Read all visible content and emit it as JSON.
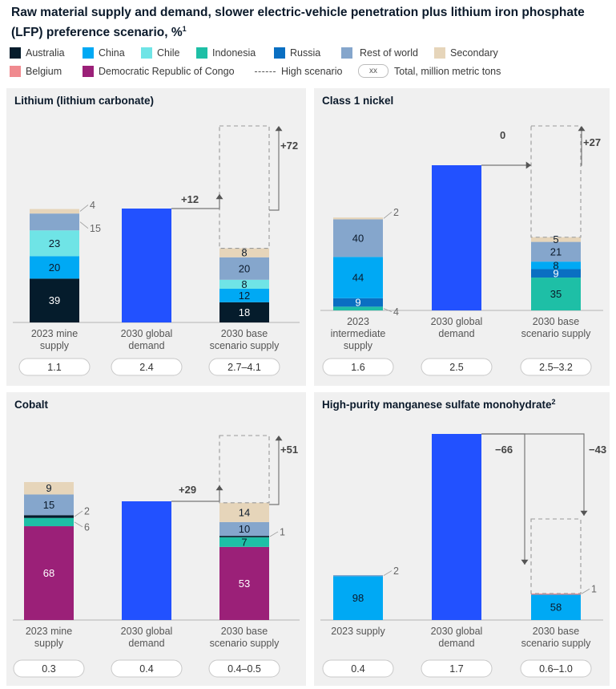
{
  "title": "Raw material supply and demand, slower electric-vehicle penetration plus lithium iron phosphate (LFP) preference scenario, %",
  "title_note": "1",
  "colors": {
    "Australia": "#051c2c",
    "China": "#00a9f4",
    "Chile": "#6fe4e6",
    "Indonesia": "#1ebfa6",
    "Russia": "#0a6fc2",
    "Rest of world": "#85a6cc",
    "Secondary": "#e6d5ba",
    "Belgium": "#f08a8f",
    "Democratic Republic of Congo": "#9b2078",
    "demand": "#2251ff"
  },
  "legend": {
    "items": [
      {
        "label": "Australia",
        "key": "Australia"
      },
      {
        "label": "China",
        "key": "China"
      },
      {
        "label": "Chile",
        "key": "Chile"
      },
      {
        "label": "Indonesia",
        "key": "Indonesia"
      },
      {
        "label": "Russia",
        "key": "Russia"
      },
      {
        "label": "Rest of world",
        "key": "Rest of world"
      },
      {
        "label": "Secondary",
        "key": "Secondary"
      },
      {
        "label": "Belgium",
        "key": "Belgium"
      },
      {
        "label": "Democratic Republic of Congo",
        "key": "Democratic Republic of Congo"
      }
    ],
    "high_scenario": "High scenario",
    "total_symbol": "xx",
    "total_label": "Total, million metric tons"
  },
  "chart_data": [
    {
      "type": "bar",
      "title": "Lithium (lithium carbonate)",
      "title_note": "",
      "categories": [
        "2023 mine supply",
        "2030 global demand",
        "2030 base scenario supply"
      ],
      "category_lines": [
        [
          "2023 mine",
          "supply"
        ],
        [
          "2030 global",
          "demand"
        ],
        [
          "2030 base",
          "scenario supply"
        ]
      ],
      "totals": [
        "1.1",
        "2.4",
        "2.7–4.1"
      ],
      "bars": [
        {
          "segments": [
            {
              "key": "Australia",
              "value": 39,
              "label": "39"
            },
            {
              "key": "China",
              "value": 20,
              "label": "20"
            },
            {
              "key": "Chile",
              "value": 23,
              "label": "23"
            },
            {
              "key": "Rest of world",
              "value": 15,
              "label": "15",
              "outside": true
            },
            {
              "key": "Secondary",
              "value": 4,
              "label": "4",
              "outside": true
            }
          ]
        },
        {
          "demand": true,
          "segments": []
        },
        {
          "segments": [
            {
              "key": "Australia",
              "value": 18,
              "label": "18"
            },
            {
              "key": "China",
              "value": 12,
              "label": "12"
            },
            {
              "key": "Chile",
              "value": 8,
              "label": "8"
            },
            {
              "key": "Rest of world",
              "value": 20,
              "label": "20"
            },
            {
              "key": "Secondary",
              "value": 8,
              "label": "8"
            }
          ],
          "high": true
        }
      ],
      "gap_label": "+12",
      "high_label": "+72"
    },
    {
      "type": "bar",
      "title": "Class 1 nickel",
      "title_note": "",
      "categories": [
        "2023 intermediate supply",
        "2030 global demand",
        "2030 base scenario supply"
      ],
      "category_lines": [
        [
          "2023",
          "intermediate",
          "supply"
        ],
        [
          "2030 global",
          "demand"
        ],
        [
          "2030 base",
          "scenario supply"
        ]
      ],
      "totals": [
        "1.6",
        "2.5",
        "2.5–3.2"
      ],
      "bars": [
        {
          "segments": [
            {
              "key": "Indonesia",
              "value": 4,
              "label": "4",
              "outside": true
            },
            {
              "key": "Russia",
              "value": 9,
              "label": "9"
            },
            {
              "key": "China",
              "value": 44,
              "label": "44"
            },
            {
              "key": "Rest of world",
              "value": 40,
              "label": "40"
            },
            {
              "key": "Secondary",
              "value": 2,
              "label": "2",
              "outside": true
            }
          ]
        },
        {
          "demand": true,
          "segments": []
        },
        {
          "segments": [
            {
              "key": "Indonesia",
              "value": 35,
              "label": "35"
            },
            {
              "key": "Russia",
              "value": 9,
              "label": "9"
            },
            {
              "key": "China",
              "value": 8,
              "label": "8"
            },
            {
              "key": "Rest of world",
              "value": 21,
              "label": "21"
            },
            {
              "key": "Secondary",
              "value": 5,
              "label": "5"
            }
          ],
          "high": true
        }
      ],
      "gap_label": "0",
      "high_label": "+27"
    },
    {
      "type": "bar",
      "title": "Cobalt",
      "title_note": "",
      "categories": [
        "2023 mine supply",
        "2030 global demand",
        "2030 base scenario supply"
      ],
      "category_lines": [
        [
          "2023 mine",
          "supply"
        ],
        [
          "2030 global",
          "demand"
        ],
        [
          "2030 base",
          "scenario supply"
        ]
      ],
      "totals": [
        "0.3",
        "0.4",
        "0.4–0.5"
      ],
      "bars": [
        {
          "segments": [
            {
              "key": "Democratic Republic of Congo",
              "value": 68,
              "label": "68"
            },
            {
              "key": "Indonesia",
              "value": 6,
              "label": "6",
              "outside": true
            },
            {
              "key": "Australia",
              "value": 2,
              "label": "2",
              "outside": true
            },
            {
              "key": "Rest of world",
              "value": 15,
              "label": "15"
            },
            {
              "key": "Secondary",
              "value": 9,
              "label": "9"
            }
          ]
        },
        {
          "demand": true,
          "segments": []
        },
        {
          "segments": [
            {
              "key": "Democratic Republic of Congo",
              "value": 53,
              "label": "53"
            },
            {
              "key": "Indonesia",
              "value": 7,
              "label": "7"
            },
            {
              "key": "Australia",
              "value": 1,
              "label": "1",
              "outside": true
            },
            {
              "key": "Rest of world",
              "value": 10,
              "label": "10"
            },
            {
              "key": "Secondary",
              "value": 14,
              "label": "14"
            }
          ],
          "high": true
        }
      ],
      "gap_label": "+29",
      "high_label": "+51"
    },
    {
      "type": "bar",
      "title": "High-purity manganese sulfate monohydrate",
      "title_note": "2",
      "categories": [
        "2023 supply",
        "2030 global demand",
        "2030 base scenario supply"
      ],
      "category_lines": [
        [
          "2023 supply"
        ],
        [
          "2030 global",
          "demand"
        ],
        [
          "2030 base",
          "scenario supply"
        ]
      ],
      "totals": [
        "0.4",
        "1.7",
        "0.6–1.0"
      ],
      "bars": [
        {
          "segments": [
            {
              "key": "China",
              "value": 98,
              "label": "98"
            },
            {
              "key": "Rest of world",
              "value": 2,
              "label": "2",
              "outside": true
            }
          ]
        },
        {
          "demand": true,
          "segments": []
        },
        {
          "segments": [
            {
              "key": "China",
              "value": 58,
              "label": "58"
            },
            {
              "key": "Belgium",
              "value": 1,
              "label": "1",
              "outside": true
            }
          ],
          "high": true
        }
      ],
      "gap_label": "−66",
      "high_label": "−43"
    }
  ]
}
